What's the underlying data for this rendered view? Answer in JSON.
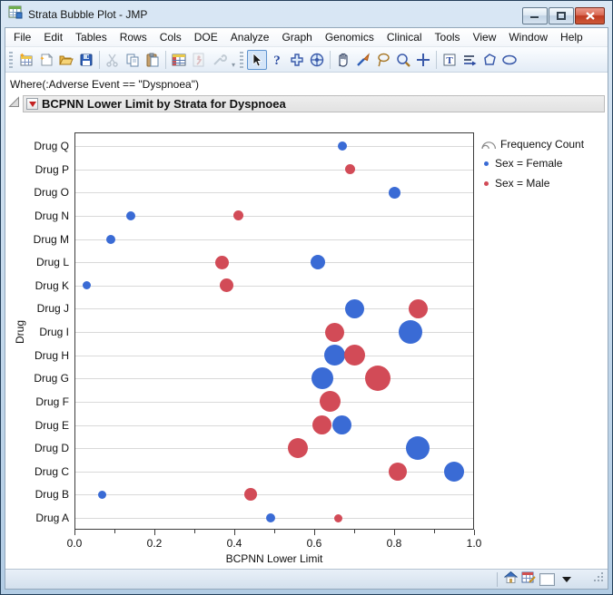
{
  "window": {
    "title": "Strata Bubble Plot - JMP",
    "controls": [
      "minimize-button",
      "maximize-button",
      "close-button"
    ]
  },
  "menu": {
    "items": [
      "File",
      "Edit",
      "Tables",
      "Rows",
      "Cols",
      "DOE",
      "Analyze",
      "Graph",
      "Genomics",
      "Clinical",
      "Tools",
      "View",
      "Window",
      "Help"
    ]
  },
  "toolbar": {
    "group1_icons": [
      "new-data-table-icon",
      "new-journal-icon",
      "open-icon",
      "save-icon",
      "cut-icon",
      "copy-icon",
      "paste-icon",
      "data-table-icon",
      "run-script-icon",
      "tools-icon"
    ],
    "group2_icons": [
      "arrow-tool-icon",
      "help-tool-icon",
      "mover-tool-icon",
      "scroller-tool-icon",
      "hand-tool-icon",
      "brush-tool-icon",
      "lasso-tool-icon",
      "magnifier-tool-icon",
      "crosshairs-tool-icon",
      "text-annotate-icon",
      "arrow-annotate-icon",
      "polygon-annotate-icon",
      "oval-annotate-icon"
    ],
    "selected_tool": "arrow-tool-icon"
  },
  "filter": {
    "where": "Where(:Adverse Event == \"Dyspnoea\")"
  },
  "report": {
    "title": "BCPNN Lower Limit by Strata for Dyspnoea"
  },
  "statusbar": {
    "icons": [
      "home-icon",
      "window-script-icon",
      "window-list-button",
      "dropdown-arrow",
      "resize-grip"
    ]
  },
  "chart_data": {
    "type": "scatter",
    "subtype": "bubble",
    "title": "BCPNN Lower Limit by Strata for Dyspnoea",
    "xlabel": "BCPNN Lower Limit",
    "ylabel": "Drug",
    "xlim": [
      0.0,
      1.0
    ],
    "x_major_ticks": [
      0.0,
      0.2,
      0.4,
      0.6,
      0.8,
      1.0
    ],
    "x_tick_labels": [
      "0.0",
      "0.2",
      "0.4",
      "0.6",
      "0.8",
      "1.0"
    ],
    "x_minor_ticks": [
      0.1,
      0.3,
      0.5,
      0.7,
      0.9
    ],
    "y_categories_top_to_bottom": [
      "Drug Q",
      "Drug P",
      "Drug O",
      "Drug N",
      "Drug M",
      "Drug L",
      "Drug K",
      "Drug J",
      "Drug I",
      "Drug H",
      "Drug G",
      "Drug F",
      "Drug E",
      "Drug D",
      "Drug C",
      "Drug B",
      "Drug A"
    ],
    "size_legend": "Frequency Count",
    "grid": "horizontal-category-lines",
    "legend_position": "right",
    "series": [
      {
        "name": "Sex = Female",
        "color": "#3a6bd5",
        "points": [
          {
            "drug": "Drug Q",
            "x": 0.67,
            "r": 5
          },
          {
            "drug": "Drug O",
            "x": 0.8,
            "r": 6.5
          },
          {
            "drug": "Drug N",
            "x": 0.14,
            "r": 5
          },
          {
            "drug": "Drug M",
            "x": 0.09,
            "r": 5
          },
          {
            "drug": "Drug L",
            "x": 0.61,
            "r": 8
          },
          {
            "drug": "Drug K",
            "x": 0.03,
            "r": 4.5
          },
          {
            "drug": "Drug J",
            "x": 0.7,
            "r": 10.5
          },
          {
            "drug": "Drug I",
            "x": 0.84,
            "r": 13
          },
          {
            "drug": "Drug H",
            "x": 0.65,
            "r": 11.5
          },
          {
            "drug": "Drug G",
            "x": 0.62,
            "r": 12
          },
          {
            "drug": "Drug E",
            "x": 0.67,
            "r": 10.5
          },
          {
            "drug": "Drug D",
            "x": 0.86,
            "r": 13
          },
          {
            "drug": "Drug C",
            "x": 0.95,
            "r": 11
          },
          {
            "drug": "Drug B",
            "x": 0.07,
            "r": 4.5
          },
          {
            "drug": "Drug A",
            "x": 0.49,
            "r": 5
          }
        ]
      },
      {
        "name": "Sex = Male",
        "color": "#d24b57",
        "points": [
          {
            "drug": "Drug P",
            "x": 0.69,
            "r": 5.5
          },
          {
            "drug": "Drug N",
            "x": 0.41,
            "r": 5.5
          },
          {
            "drug": "Drug L",
            "x": 0.37,
            "r": 7.5
          },
          {
            "drug": "Drug K",
            "x": 0.38,
            "r": 7.5
          },
          {
            "drug": "Drug J",
            "x": 0.86,
            "r": 10.5
          },
          {
            "drug": "Drug I",
            "x": 0.65,
            "r": 10.5
          },
          {
            "drug": "Drug H",
            "x": 0.7,
            "r": 11.5
          },
          {
            "drug": "Drug G",
            "x": 0.76,
            "r": 14
          },
          {
            "drug": "Drug F",
            "x": 0.64,
            "r": 11.5
          },
          {
            "drug": "Drug E",
            "x": 0.62,
            "r": 10.5
          },
          {
            "drug": "Drug D",
            "x": 0.56,
            "r": 11
          },
          {
            "drug": "Drug C",
            "x": 0.81,
            "r": 10
          },
          {
            "drug": "Drug B",
            "x": 0.44,
            "r": 7
          },
          {
            "drug": "Drug A",
            "x": 0.66,
            "r": 4.5
          }
        ]
      }
    ]
  }
}
